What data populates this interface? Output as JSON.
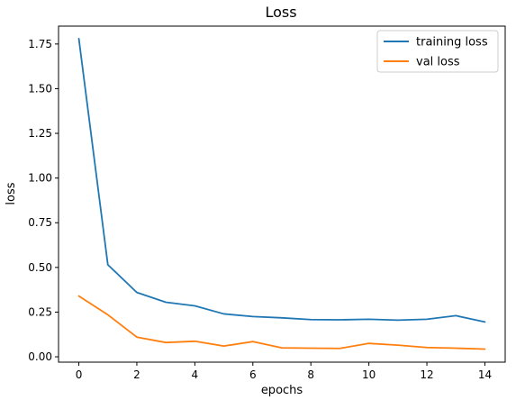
{
  "chart_data": {
    "type": "line",
    "title": "Loss",
    "xlabel": "epochs",
    "ylabel": "loss",
    "x": [
      0,
      1,
      2,
      3,
      4,
      5,
      6,
      7,
      8,
      9,
      10,
      11,
      12,
      13,
      14
    ],
    "xlim": [
      -0.7,
      14.7
    ],
    "ylim": [
      -0.03,
      1.85
    ],
    "xticks": [
      0,
      2,
      4,
      6,
      8,
      10,
      12,
      14
    ],
    "xtick_labels": [
      "0",
      "2",
      "4",
      "6",
      "8",
      "10",
      "12",
      "14"
    ],
    "yticks": [
      0.0,
      0.25,
      0.5,
      0.75,
      1.0,
      1.25,
      1.5,
      1.75
    ],
    "ytick_labels": [
      "0.00",
      "0.25",
      "0.50",
      "0.75",
      "1.00",
      "1.25",
      "1.50",
      "1.75"
    ],
    "grid": false,
    "legend_position": "top-right",
    "series": [
      {
        "name": "training loss",
        "color": "#1f77b4",
        "values": [
          1.78,
          0.515,
          0.36,
          0.305,
          0.285,
          0.24,
          0.225,
          0.218,
          0.208,
          0.207,
          0.21,
          0.205,
          0.21,
          0.23,
          0.195
        ]
      },
      {
        "name": "val loss",
        "color": "#ff7f0e",
        "values": [
          0.34,
          0.235,
          0.11,
          0.08,
          0.087,
          0.06,
          0.085,
          0.05,
          0.048,
          0.047,
          0.075,
          0.065,
          0.052,
          0.048,
          0.043
        ]
      }
    ]
  }
}
